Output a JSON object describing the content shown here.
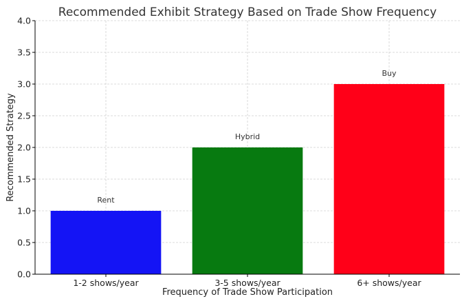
{
  "chart_data": {
    "type": "bar",
    "title": "Recommended Exhibit Strategy Based on Trade Show Frequency",
    "xlabel": "Frequency of Trade Show Participation",
    "ylabel": "Recommended Strategy",
    "categories": [
      "1-2 shows/year",
      "3-5 shows/year",
      "6+ shows/year"
    ],
    "values": [
      1.0,
      2.0,
      3.0
    ],
    "data_labels": [
      "Rent",
      "Hybrid",
      "Buy"
    ],
    "colors": [
      "#1414f5",
      "#077a10",
      "#ff0018"
    ],
    "ylim": [
      0,
      4.0
    ],
    "yticks": [
      "0.0",
      "0.5",
      "1.0",
      "1.5",
      "2.0",
      "2.5",
      "3.0",
      "3.5",
      "4.0"
    ],
    "grid": true,
    "legend": "none"
  }
}
